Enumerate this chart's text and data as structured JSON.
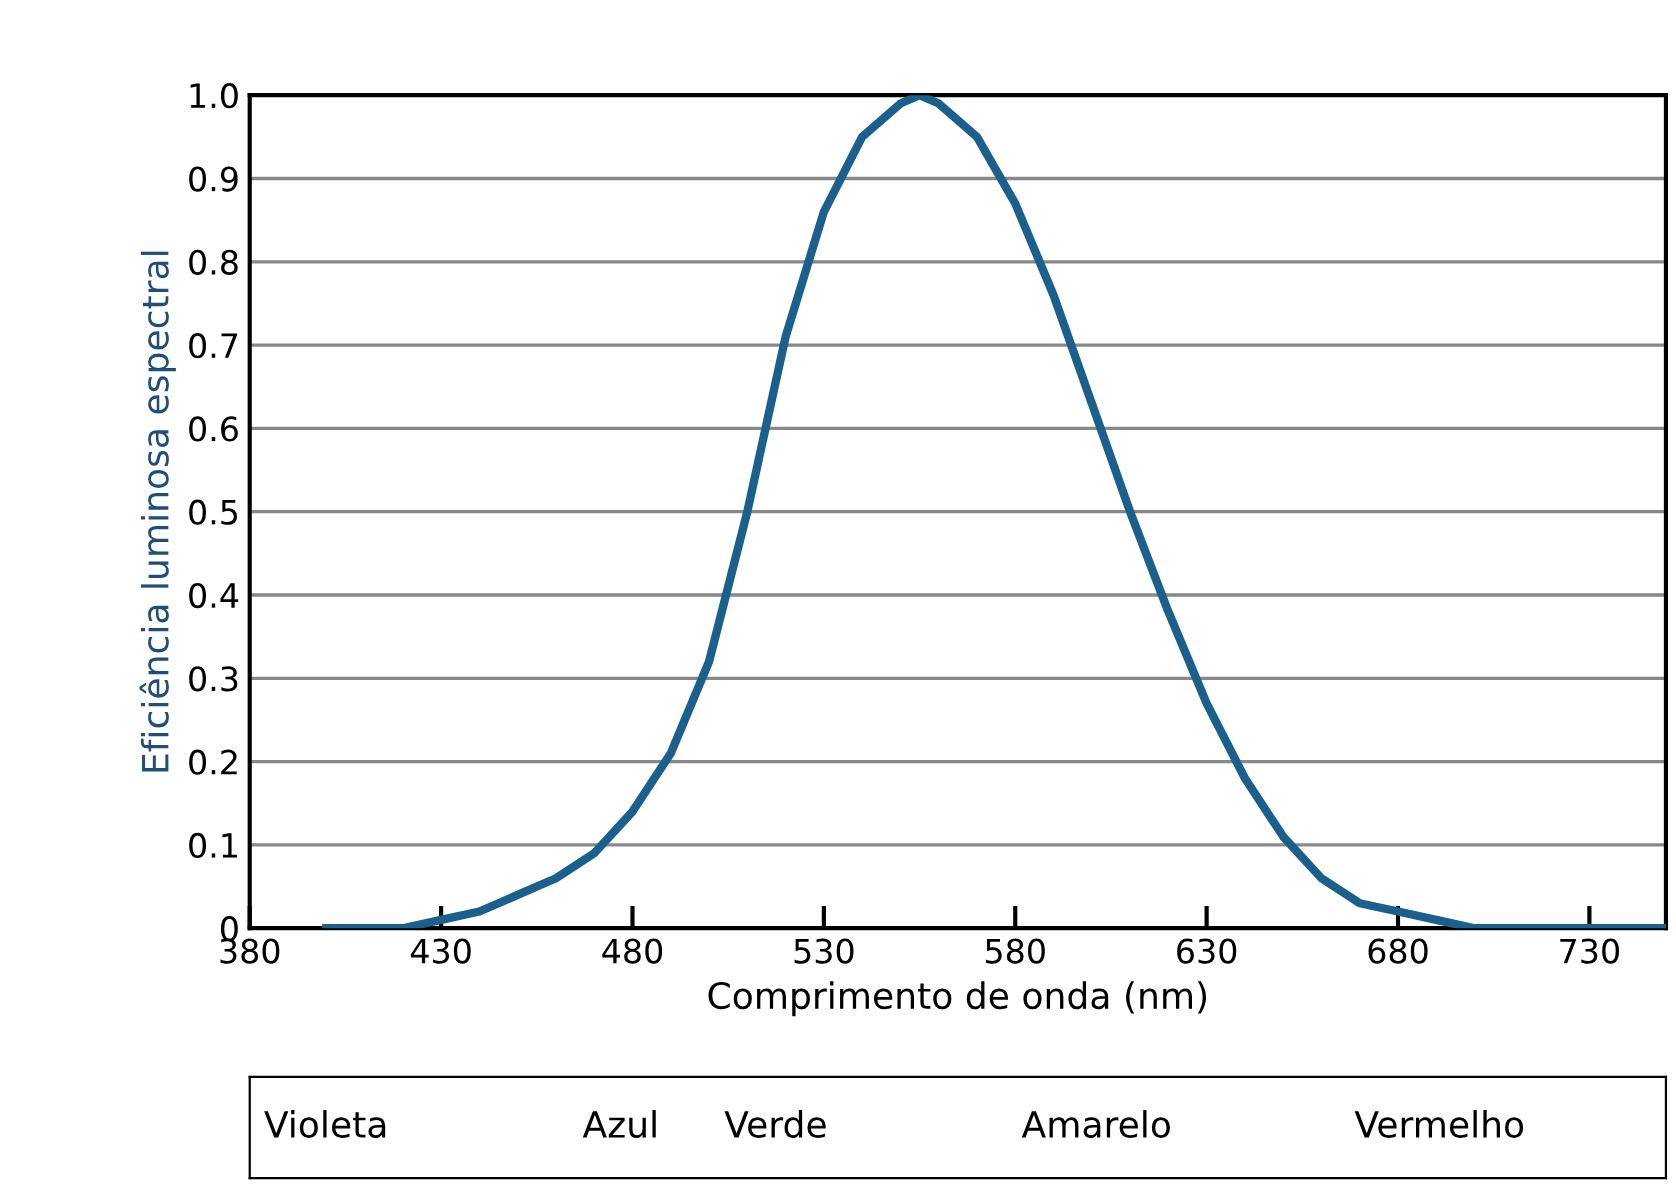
{
  "chart_data": {
    "type": "line",
    "xlabel": "Comprimento de onda (nm)",
    "ylabel": "Eficiência luminosa espectral",
    "x": [
      400,
      410,
      420,
      430,
      440,
      450,
      460,
      470,
      480,
      490,
      500,
      510,
      520,
      530,
      540,
      550,
      555,
      560,
      570,
      580,
      590,
      600,
      610,
      620,
      630,
      640,
      650,
      660,
      670,
      680,
      690,
      700,
      710,
      720,
      730,
      740,
      750
    ],
    "series": [
      {
        "color": "#1b5f8c",
        "values": [
          0.0,
          0.0,
          0.0,
          0.01,
          0.02,
          0.04,
          0.06,
          0.09,
          0.14,
          0.21,
          0.32,
          0.5,
          0.71,
          0.86,
          0.95,
          0.99,
          1.0,
          0.99,
          0.95,
          0.87,
          0.76,
          0.63,
          0.5,
          0.38,
          0.27,
          0.18,
          0.11,
          0.06,
          0.03,
          0.02,
          0.01,
          0.0,
          0.0,
          0.0,
          0.0,
          0.0,
          0.0
        ]
      }
    ],
    "xlim": [
      380,
      750
    ],
    "ylim": [
      0,
      1
    ],
    "xticks": [
      380,
      430,
      480,
      530,
      580,
      630,
      680,
      730
    ],
    "yticks": [
      0,
      0.1,
      0.2,
      0.3,
      0.4,
      0.5,
      0.6,
      0.7,
      0.8,
      0.9,
      {
        "value": 1,
        "label": "1.0"
      }
    ],
    "grid": "y",
    "marker": "none",
    "line_style": "solid",
    "annotations": [
      "Violeta",
      "Azul",
      "Verde",
      "Amarelo",
      "Vermelho"
    ]
  }
}
